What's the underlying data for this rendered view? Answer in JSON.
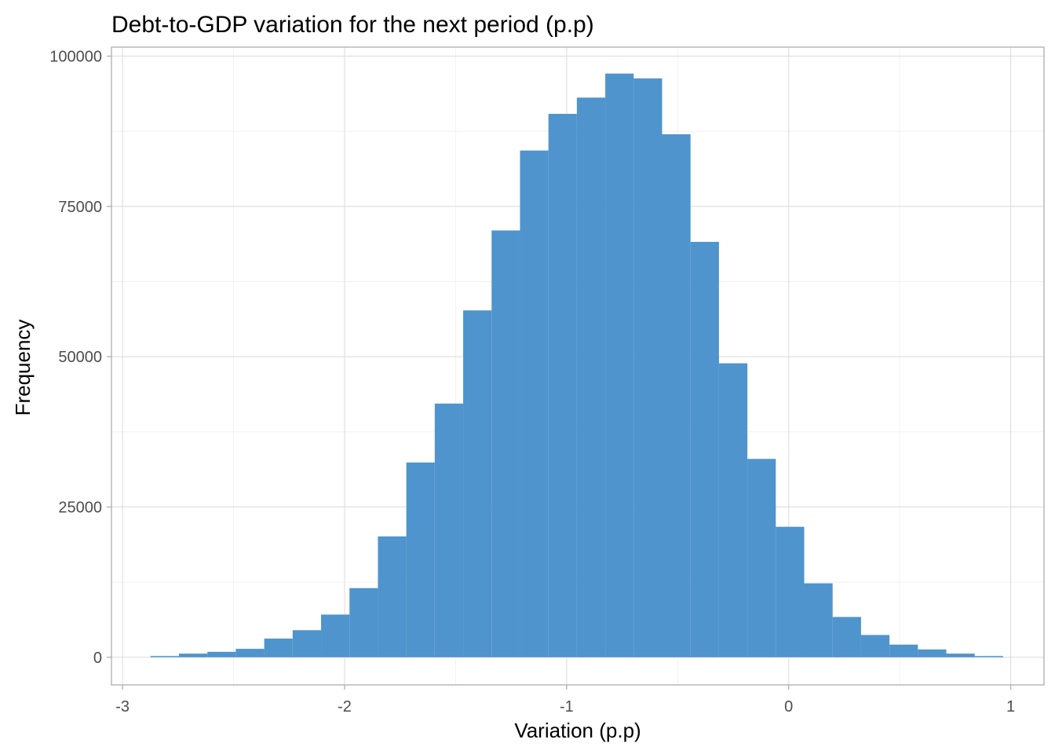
{
  "chart_data": {
    "type": "bar",
    "title": "Debt-to-GDP variation for the next period (p.p)",
    "xlabel": "Variation (p.p)",
    "ylabel": "Frequency",
    "xlim": [
      -3.05,
      1.15
    ],
    "ylim": [
      -4600,
      101500
    ],
    "x_ticks": [
      -3,
      -2,
      -1,
      0,
      1
    ],
    "x_tick_labels": [
      "-3",
      "-2",
      "-1",
      "0",
      "1"
    ],
    "x_minor_ticks": [
      -2.5,
      -1.5,
      -0.5,
      0.5
    ],
    "y_ticks": [
      0,
      25000,
      50000,
      75000,
      100000
    ],
    "y_tick_labels": [
      "0",
      "25000",
      "50000",
      "75000",
      "100000"
    ],
    "y_minor_ticks": [
      12500,
      37500,
      62500,
      87500
    ],
    "grid": true,
    "bar_color": "#4F94CD",
    "bin_width": 0.128,
    "bins": [
      {
        "x": -2.81,
        "value": 200
      },
      {
        "x": -2.682,
        "value": 600
      },
      {
        "x": -2.554,
        "value": 900
      },
      {
        "x": -2.426,
        "value": 1400
      },
      {
        "x": -2.298,
        "value": 3100
      },
      {
        "x": -2.17,
        "value": 4500
      },
      {
        "x": -2.042,
        "value": 7100
      },
      {
        "x": -1.914,
        "value": 11500
      },
      {
        "x": -1.786,
        "value": 20100
      },
      {
        "x": -1.658,
        "value": 32400
      },
      {
        "x": -1.53,
        "value": 42200
      },
      {
        "x": -1.402,
        "value": 57700
      },
      {
        "x": -1.274,
        "value": 71000
      },
      {
        "x": -1.146,
        "value": 84300
      },
      {
        "x": -1.018,
        "value": 90400
      },
      {
        "x": -0.89,
        "value": 93100
      },
      {
        "x": -0.762,
        "value": 97100
      },
      {
        "x": -0.634,
        "value": 96300
      },
      {
        "x": -0.506,
        "value": 87000
      },
      {
        "x": -0.378,
        "value": 69100
      },
      {
        "x": -0.25,
        "value": 48900
      },
      {
        "x": -0.122,
        "value": 33000
      },
      {
        "x": 0.006,
        "value": 21700
      },
      {
        "x": 0.134,
        "value": 12300
      },
      {
        "x": 0.262,
        "value": 6700
      },
      {
        "x": 0.39,
        "value": 3700
      },
      {
        "x": 0.518,
        "value": 2100
      },
      {
        "x": 0.646,
        "value": 1300
      },
      {
        "x": 0.774,
        "value": 600
      },
      {
        "x": 0.902,
        "value": 200
      }
    ]
  }
}
